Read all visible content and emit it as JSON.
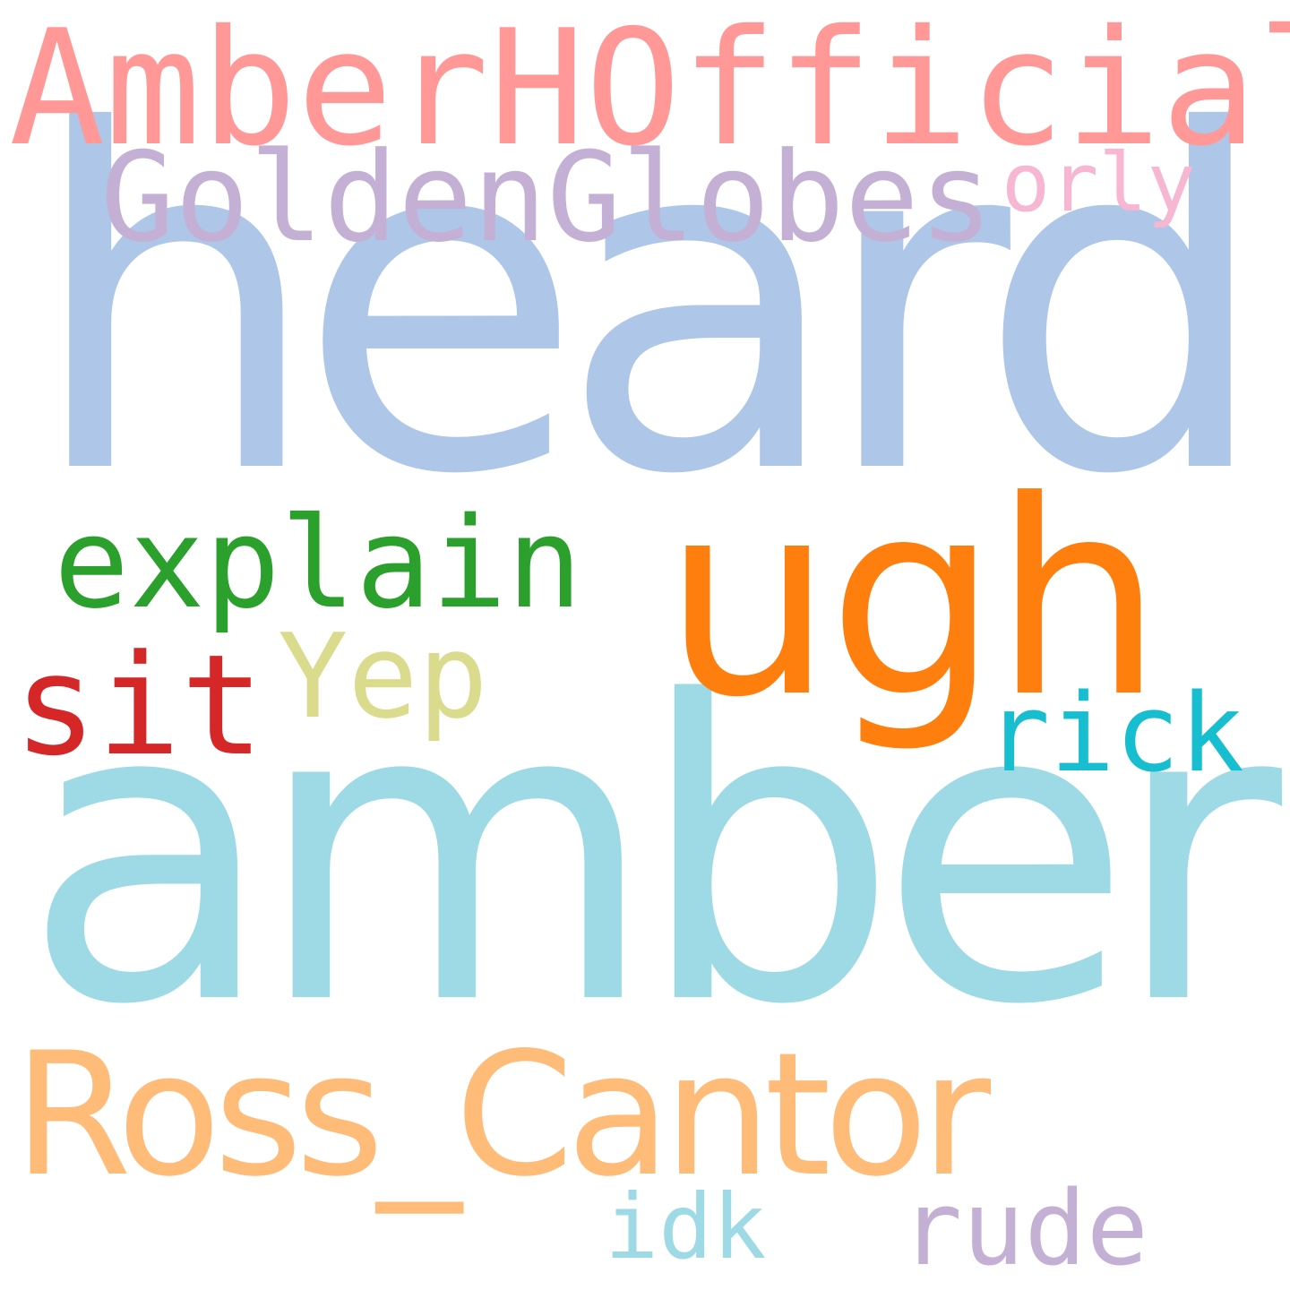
{
  "words": [
    {
      "text": "heard",
      "color": "#aec7e8"
    },
    {
      "text": "amber",
      "color": "#9edae5"
    },
    {
      "text": "Ross_Cantor",
      "color": "#ffbb78"
    },
    {
      "text": "AmberHOfficial",
      "color": "#ff9896"
    },
    {
      "text": "GoldenGlobes",
      "color": "#c5b0d5"
    },
    {
      "text": "orly",
      "color": "#f7b6d2"
    },
    {
      "text": "ugh",
      "color": "#ff7f0e"
    },
    {
      "text": "explain",
      "color": "#2ca02c"
    },
    {
      "text": "sit",
      "color": "#d62728"
    },
    {
      "text": "Yep",
      "color": "#dbdb8d"
    },
    {
      "text": "rick",
      "color": "#17becf"
    },
    {
      "text": "idk",
      "color": "#9edae5"
    },
    {
      "text": "rude",
      "color": "#c5b0d5"
    }
  ]
}
